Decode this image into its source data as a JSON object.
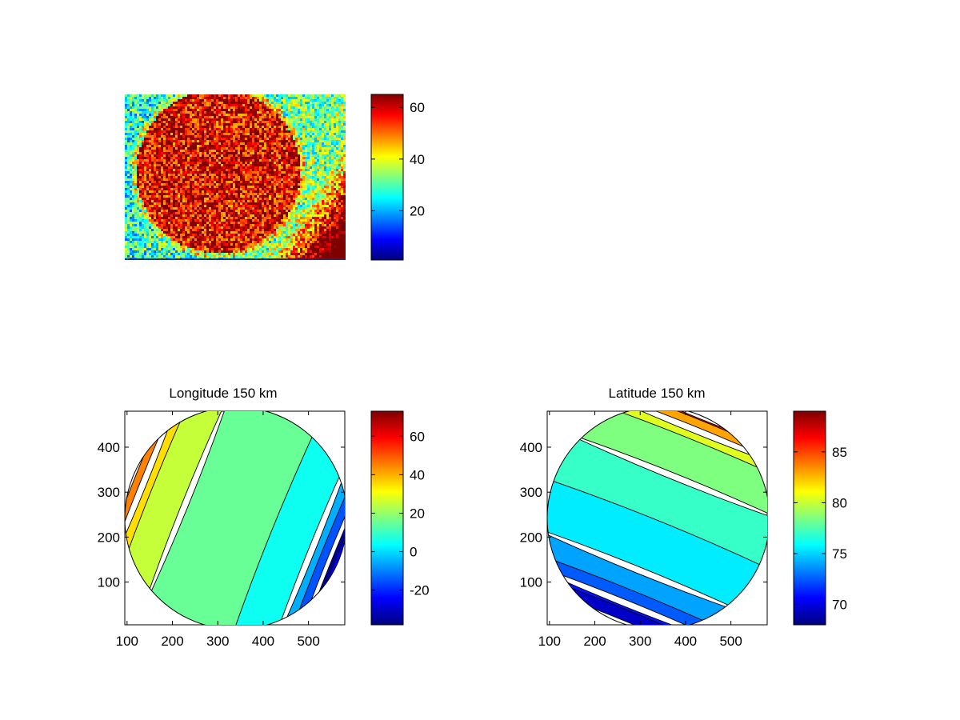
{
  "colormap": [
    "#00007f",
    "#0000ff",
    "#007fff",
    "#00ffff",
    "#7fff7f",
    "#ffff00",
    "#ff7f00",
    "#ff0000",
    "#7f0000"
  ],
  "chart_data": [
    {
      "type": "heatmap",
      "title": "",
      "description_values": {
        "background_level": 27,
        "disk_level": 58,
        "disk_center_fraction": [
          0.42,
          0.46
        ],
        "disk_radius_fraction_of_width": 0.27,
        "lower_right_hot_corner": true
      },
      "colorbar": {
        "clim": [
          1,
          65
        ],
        "ticks": [
          20,
          40,
          60
        ]
      }
    },
    {
      "type": "heatmap",
      "title": "Longitude 150 km",
      "xlim": [
        95,
        580
      ],
      "ylim": [
        5,
        480
      ],
      "xticks": [
        100,
        200,
        300,
        400,
        500
      ],
      "yticks": [
        100,
        200,
        300,
        400
      ],
      "disk_center": [
        340,
        242
      ],
      "disk_radius": 245,
      "bands": [
        {
          "value": 55,
          "from": -1.0,
          "to": -0.95
        },
        {
          "value": 45,
          "from": -0.95,
          "to": -0.89
        },
        {
          "value": 35,
          "from": -0.89,
          "to": -0.77
        },
        {
          "value": 25,
          "from": -0.77,
          "to": -0.47
        },
        {
          "value": 15,
          "from": -0.47,
          "to": 0.37
        },
        {
          "value": 5,
          "from": 0.37,
          "to": 0.74
        },
        {
          "value": -5,
          "from": 0.74,
          "to": 0.86
        },
        {
          "value": -15,
          "from": 0.86,
          "to": 0.93
        },
        {
          "value": -25,
          "from": 0.93,
          "to": 0.97
        },
        {
          "value": -35,
          "from": 0.97,
          "to": 1.0
        }
      ],
      "colorbar": {
        "clim": [
          -38,
          73
        ],
        "ticks": [
          -20,
          0,
          20,
          40,
          60
        ]
      }
    },
    {
      "type": "heatmap",
      "title": "Latitude 150 km",
      "xlim": [
        95,
        580
      ],
      "ylim": [
        5,
        480
      ],
      "xticks": [
        100,
        200,
        300,
        400,
        500
      ],
      "yticks": [
        100,
        200,
        300,
        400
      ],
      "disk_center": [
        340,
        242
      ],
      "disk_radius": 245,
      "bands": [
        {
          "value": 86,
          "from": -1.0,
          "to": -0.93
        },
        {
          "value": 83,
          "from": -0.93,
          "to": -0.86
        },
        {
          "value": 80.5,
          "from": -0.86,
          "to": -0.74
        },
        {
          "value": 78.5,
          "from": -0.74,
          "to": -0.4
        },
        {
          "value": 77,
          "from": -0.4,
          "to": 0.05
        },
        {
          "value": 75.5,
          "from": 0.05,
          "to": 0.5
        },
        {
          "value": 74,
          "from": 0.5,
          "to": 0.72
        },
        {
          "value": 72.5,
          "from": 0.72,
          "to": 0.82
        },
        {
          "value": 71,
          "from": 0.82,
          "to": 0.9
        },
        {
          "value": 69.5,
          "from": 0.9,
          "to": 1.0
        }
      ],
      "colorbar": {
        "clim": [
          68,
          89
        ],
        "ticks": [
          70,
          75,
          80,
          85
        ]
      }
    }
  ]
}
